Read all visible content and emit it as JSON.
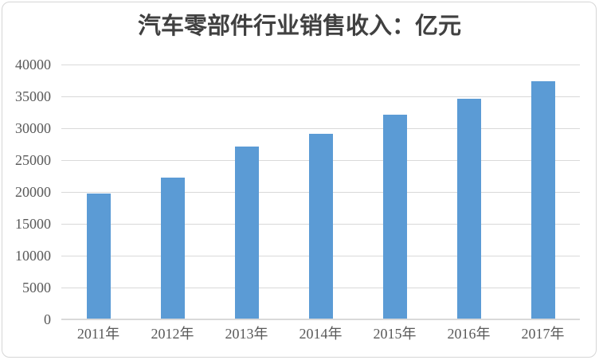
{
  "chart_data": {
    "type": "bar",
    "title": "汽车零部件行业销售收入：亿元",
    "categories": [
      "2011年",
      "2012年",
      "2013年",
      "2014年",
      "2015年",
      "2016年",
      "2017年"
    ],
    "values": [
      19778,
      22268,
      27100,
      29157,
      32117,
      34654,
      37392
    ],
    "xlabel": "",
    "ylabel": "",
    "ylim": [
      0,
      40000
    ],
    "ytick_step": 5000,
    "yticks": [
      "0",
      "5000",
      "10000",
      "15000",
      "20000",
      "25000",
      "30000",
      "35000",
      "40000"
    ],
    "grid": true,
    "legend": "none",
    "colors": {
      "bar": "#5B9BD5",
      "gridline": "#D9D9D9",
      "axis_line": "#D9D9D9",
      "tick_label": "#595959",
      "title": "#404040",
      "border": "#D6D6D6",
      "background": "#FFFFFF"
    }
  }
}
